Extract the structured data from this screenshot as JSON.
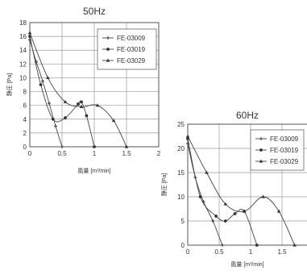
{
  "chart_data": [
    {
      "type": "line",
      "title": "50Hz",
      "xlabel": "風量 [m³/min]",
      "ylabel": "静圧 [Pa]",
      "xlim": [
        0,
        2
      ],
      "ylim": [
        0,
        18
      ],
      "xticks": [
        0,
        0.5,
        1,
        1.5,
        2
      ],
      "yticks": [
        0,
        2,
        4,
        6,
        8,
        10,
        12,
        14,
        16,
        18
      ],
      "xtick_labels": [
        "0",
        "0.5",
        "1",
        "1.5",
        "2"
      ],
      "ytick_labels": [
        "0",
        "2",
        "4",
        "6",
        "8",
        "10",
        "12",
        "14",
        "16",
        "18"
      ],
      "grid": true,
      "legend_position": "top-right",
      "series": [
        {
          "name": "FE-03009",
          "marker": "cross",
          "x": [
            0.0,
            0.1,
            0.2,
            0.3,
            0.4,
            0.5
          ],
          "y": [
            15.5,
            12.3,
            9.5,
            6.3,
            3.0,
            0.0
          ]
        },
        {
          "name": "FE-03019",
          "marker": "dot",
          "x": [
            0.0,
            0.17,
            0.36,
            0.55,
            0.75,
            0.8,
            0.88,
            1.0
          ],
          "y": [
            16.0,
            9.0,
            4.0,
            4.2,
            6.2,
            6.5,
            4.5,
            0.0
          ]
        },
        {
          "name": "FE-03029",
          "marker": "triangle",
          "x": [
            0.0,
            0.28,
            0.55,
            0.8,
            1.05,
            1.3,
            1.5
          ],
          "y": [
            16.5,
            10.0,
            6.5,
            5.8,
            6.0,
            3.8,
            0.0
          ]
        }
      ]
    },
    {
      "type": "line",
      "title": "60Hz",
      "xlabel": "風量 [m³/min]",
      "ylabel": "静圧 [Pa]",
      "xlim": [
        0,
        2
      ],
      "ylim": [
        0,
        25
      ],
      "xticks": [
        0,
        0.5,
        1,
        1.5,
        2
      ],
      "yticks": [
        0,
        5,
        10,
        15,
        20,
        25
      ],
      "xtick_labels": [
        "0",
        "0.5",
        "1",
        "1.5",
        ""
      ],
      "ytick_labels": [
        "0",
        "5",
        "10",
        "15",
        "20",
        "25"
      ],
      "grid": true,
      "legend_position": "top-right",
      "series": [
        {
          "name": "FE-03009",
          "marker": "cross",
          "x": [
            0.0,
            0.12,
            0.25,
            0.4,
            0.55
          ],
          "y": [
            21.0,
            14.0,
            9.0,
            5.0,
            0.0
          ]
        },
        {
          "name": "FE-03019",
          "marker": "dot",
          "x": [
            0.0,
            0.2,
            0.45,
            0.6,
            0.75,
            0.9,
            1.1
          ],
          "y": [
            22.0,
            10.0,
            6.0,
            5.0,
            6.5,
            7.0,
            0.0
          ]
        },
        {
          "name": "FE-03029",
          "marker": "triangle",
          "x": [
            0.0,
            0.3,
            0.6,
            0.9,
            1.2,
            1.45,
            1.7
          ],
          "y": [
            22.5,
            15.0,
            8.5,
            7.0,
            10.0,
            7.0,
            0.0
          ]
        }
      ]
    }
  ]
}
